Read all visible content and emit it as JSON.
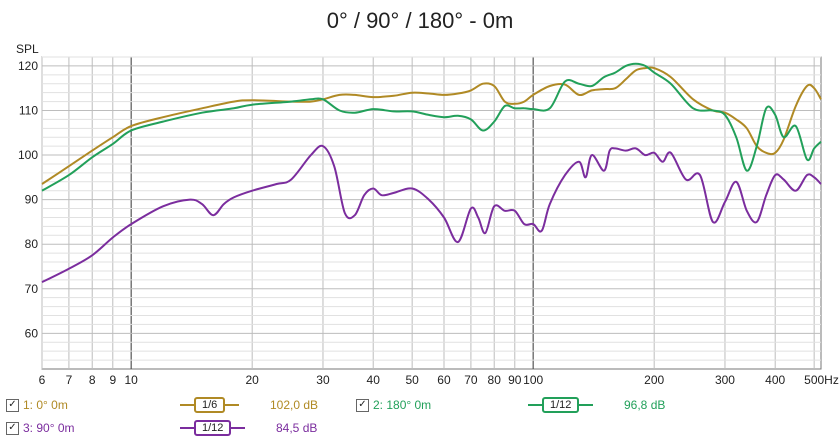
{
  "chart_data": {
    "type": "line",
    "title": "0° / 90° / 180° - 0m",
    "ylabel": "SPL",
    "xlabel": "",
    "x_scale": "log",
    "xlim": [
      6,
      520
    ],
    "ylim": [
      52,
      122
    ],
    "grid": true,
    "x_tick_labels": [
      {
        "v": 6,
        "t": "6"
      },
      {
        "v": 7,
        "t": "7"
      },
      {
        "v": 8,
        "t": "8"
      },
      {
        "v": 9,
        "t": "9"
      },
      {
        "v": 10,
        "t": "10"
      },
      {
        "v": 20,
        "t": "20"
      },
      {
        "v": 30,
        "t": "30"
      },
      {
        "v": 40,
        "t": "40"
      },
      {
        "v": 50,
        "t": "50"
      },
      {
        "v": 60,
        "t": "60"
      },
      {
        "v": 70,
        "t": "70"
      },
      {
        "v": 80,
        "t": "80"
      },
      {
        "v": 90,
        "t": "90"
      },
      {
        "v": 100,
        "t": "100"
      },
      {
        "v": 200,
        "t": "200"
      },
      {
        "v": 300,
        "t": "300"
      },
      {
        "v": 400,
        "t": "400"
      },
      {
        "v": 500,
        "t": "500Hz"
      }
    ],
    "y_ticks": [
      60,
      70,
      80,
      90,
      100,
      110,
      120
    ],
    "series": [
      {
        "name": "1: 0° 0m",
        "color": "#b08a25",
        "x": [
          6,
          7,
          8,
          9,
          10,
          12,
          15,
          18,
          20,
          25,
          28,
          30,
          33,
          36,
          40,
          45,
          50,
          55,
          60,
          65,
          70,
          75,
          80,
          85,
          90,
          95,
          100,
          110,
          120,
          130,
          140,
          150,
          160,
          170,
          180,
          190,
          200,
          220,
          250,
          280,
          300,
          320,
          340,
          360,
          380,
          400,
          420,
          450,
          480,
          500,
          520
        ],
        "y": [
          93.5,
          97.5,
          101,
          104,
          106.5,
          108.5,
          110.5,
          112,
          112.3,
          112,
          112,
          112.5,
          113.5,
          113.5,
          113,
          113.3,
          114,
          113.8,
          113.5,
          113.8,
          114.5,
          116,
          115.5,
          112,
          111.5,
          112,
          113.5,
          115.5,
          115.8,
          113.5,
          114.5,
          114.8,
          115,
          117,
          119,
          119.5,
          119.5,
          117.5,
          112.5,
          110,
          109.5,
          108,
          106,
          102,
          100.5,
          100.5,
          103.5,
          111,
          115.5,
          115,
          112.5
        ]
      },
      {
        "name": "2: 180° 0m",
        "color": "#22a05a",
        "x": [
          6,
          7,
          8,
          9,
          10,
          12,
          15,
          18,
          20,
          25,
          28,
          30,
          33,
          36,
          40,
          45,
          50,
          55,
          60,
          65,
          70,
          75,
          80,
          85,
          90,
          95,
          100,
          110,
          120,
          130,
          140,
          150,
          160,
          170,
          180,
          190,
          200,
          220,
          250,
          280,
          300,
          320,
          340,
          360,
          380,
          400,
          420,
          450,
          480,
          500,
          520
        ],
        "y": [
          92,
          95.5,
          99.5,
          102.5,
          105.5,
          107.5,
          109.5,
          110.5,
          111.3,
          112,
          112.5,
          112.5,
          110,
          109.5,
          110.3,
          109.8,
          109.8,
          109,
          108.5,
          108.8,
          108,
          105.5,
          107.5,
          111,
          110.5,
          110.5,
          110.3,
          110.5,
          116.5,
          116,
          115.5,
          117.5,
          118.5,
          120,
          120.5,
          120,
          118.5,
          116,
          110.5,
          110,
          109,
          104,
          96.5,
          102,
          110.5,
          109,
          104,
          106.5,
          99,
          101.5,
          103
        ]
      },
      {
        "name": "3: 90° 0m",
        "color": "#7b2d9e",
        "x": [
          6,
          7,
          8,
          9,
          10,
          12,
          14,
          15,
          16,
          17,
          18,
          20,
          23,
          25,
          28,
          30,
          32,
          34,
          36,
          38,
          40,
          42,
          45,
          50,
          55,
          60,
          65,
          70,
          73,
          76,
          80,
          85,
          90,
          95,
          100,
          105,
          110,
          120,
          130,
          135,
          140,
          150,
          155,
          160,
          170,
          180,
          190,
          200,
          210,
          220,
          240,
          260,
          280,
          300,
          320,
          340,
          360,
          380,
          400,
          420,
          450,
          480,
          500,
          520
        ],
        "y": [
          71.5,
          74.5,
          77.5,
          81.5,
          84.5,
          88.5,
          90,
          89,
          86.5,
          89,
          90.5,
          92,
          93.5,
          94.5,
          100,
          102,
          97.5,
          87,
          86.5,
          91,
          92.5,
          91,
          91.5,
          92.5,
          90,
          86,
          80.5,
          88,
          86,
          82.5,
          88.5,
          87.5,
          87.5,
          84.5,
          84.5,
          83,
          89,
          95.5,
          98.5,
          95,
          100,
          96.5,
          101,
          101.5,
          101,
          101.5,
          100,
          100.5,
          98.5,
          100.5,
          94.5,
          95.5,
          85,
          89.5,
          94,
          87.5,
          85,
          91,
          95.5,
          94.5,
          92,
          95.5,
          95,
          93.5
        ]
      }
    ]
  },
  "legend": [
    {
      "check": "✓",
      "label": "1: 0° 0m",
      "smoothing": "1/6",
      "value": "102,0 dB"
    },
    {
      "check": "✓",
      "label": "2: 180° 0m",
      "smoothing": "1/12",
      "value": "96,8 dB"
    },
    {
      "check": "✓",
      "label": "3: 90° 0m",
      "smoothing": "1/12",
      "value": "84,5 dB"
    }
  ]
}
